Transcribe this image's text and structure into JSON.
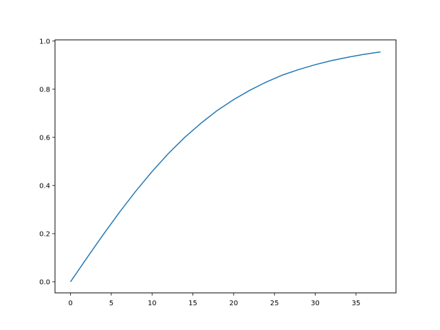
{
  "chart_data": {
    "type": "line",
    "title": "",
    "xlabel": "",
    "ylabel": "",
    "xlim": [
      -1.9,
      39.9
    ],
    "ylim": [
      -0.046,
      1.005
    ],
    "grid": false,
    "xticks": [
      0,
      5,
      10,
      15,
      20,
      25,
      30,
      35
    ],
    "xtick_labels": [
      "0",
      "5",
      "10",
      "15",
      "20",
      "25",
      "30",
      "35"
    ],
    "yticks": [
      0.0,
      0.2,
      0.4,
      0.6,
      0.8,
      1.0
    ],
    "ytick_labels": [
      "0.0",
      "0.2",
      "0.4",
      "0.6",
      "0.8",
      "1.0"
    ],
    "series": [
      {
        "color": "#1f77b4",
        "x": [
          0,
          2,
          4,
          6,
          8,
          10,
          12,
          14,
          16,
          18,
          20,
          22,
          24,
          26,
          28,
          30,
          32,
          34,
          36,
          38
        ],
        "y": [
          0,
          0.0987,
          0.1955,
          0.2886,
          0.3765,
          0.458,
          0.533,
          0.6,
          0.659,
          0.712,
          0.757,
          0.796,
          0.83,
          0.859,
          0.882,
          0.902,
          0.919,
          0.933,
          0.945,
          0.955
        ]
      }
    ]
  }
}
